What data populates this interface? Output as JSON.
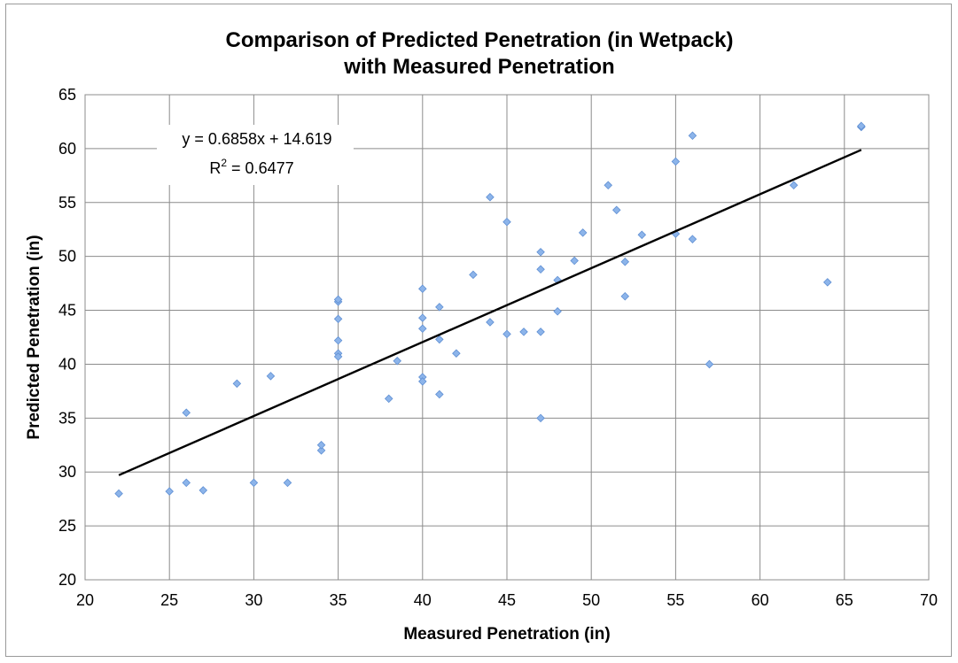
{
  "chart_data": {
    "type": "scatter",
    "title_line1": "Comparison of Predicted Penetration (in Wetpack)",
    "title_line2": "with Measured Penetration",
    "xlabel": "Measured Penetration (in)",
    "ylabel": "Predicted Penetration (in)",
    "xlim": [
      20,
      70
    ],
    "ylim": [
      20,
      65
    ],
    "x_ticks": [
      20,
      25,
      30,
      35,
      40,
      45,
      50,
      55,
      60,
      65,
      70
    ],
    "y_ticks": [
      20,
      25,
      30,
      35,
      40,
      45,
      50,
      55,
      60,
      65
    ],
    "grid": true,
    "marker_color": "#8cb4ea",
    "trendline": {
      "equation": "y = 0.6858x + 14.619",
      "r2_prefix": "R",
      "r2_exp": "2",
      "r2_value": " = 0.6477",
      "slope": 0.6858,
      "intercept": 14.619,
      "x_range": [
        22,
        66
      ],
      "color": "#000000"
    },
    "points": [
      [
        22,
        28
      ],
      [
        25,
        28.2
      ],
      [
        26,
        29
      ],
      [
        26,
        35.5
      ],
      [
        27,
        28.3
      ],
      [
        29,
        38.2
      ],
      [
        30,
        29
      ],
      [
        31,
        38.9
      ],
      [
        32,
        29
      ],
      [
        34,
        32
      ],
      [
        34,
        32.5
      ],
      [
        35,
        45.8
      ],
      [
        35,
        46
      ],
      [
        35,
        44.2
      ],
      [
        35,
        42.2
      ],
      [
        35,
        41
      ],
      [
        35,
        40.7
      ],
      [
        38,
        36.8
      ],
      [
        38.5,
        40.3
      ],
      [
        40,
        47
      ],
      [
        40,
        44.3
      ],
      [
        40,
        43.3
      ],
      [
        40,
        38.8
      ],
      [
        40,
        38.4
      ],
      [
        41,
        45.3
      ],
      [
        41,
        42.3
      ],
      [
        41,
        37.2
      ],
      [
        42,
        41
      ],
      [
        43,
        48.3
      ],
      [
        44,
        55.5
      ],
      [
        44,
        43.9
      ],
      [
        45,
        53.2
      ],
      [
        45,
        42.8
      ],
      [
        46,
        43
      ],
      [
        47,
        50.4
      ],
      [
        47,
        48.8
      ],
      [
        47,
        43
      ],
      [
        47,
        35
      ],
      [
        48,
        47.8
      ],
      [
        48,
        44.9
      ],
      [
        49,
        49.6
      ],
      [
        49.5,
        52.2
      ],
      [
        51,
        56.6
      ],
      [
        51.5,
        54.3
      ],
      [
        52,
        49.5
      ],
      [
        52,
        46.3
      ],
      [
        53,
        52
      ],
      [
        55,
        58.8
      ],
      [
        55,
        52.1
      ],
      [
        56,
        61.2
      ],
      [
        56,
        51.6
      ],
      [
        57,
        40
      ],
      [
        62,
        56.6
      ],
      [
        64,
        47.6
      ],
      [
        66,
        62
      ],
      [
        66,
        62.1
      ]
    ]
  }
}
